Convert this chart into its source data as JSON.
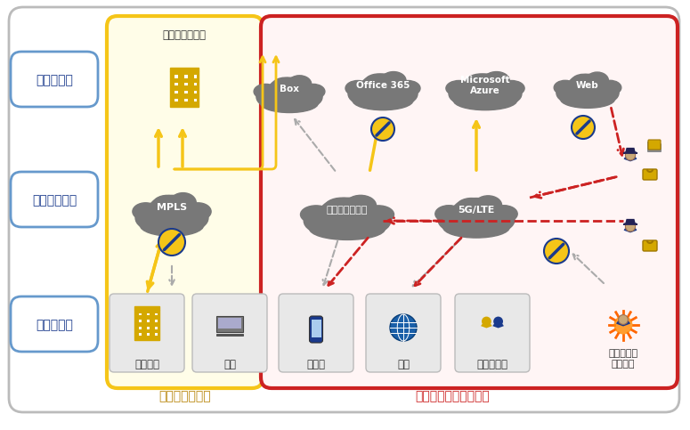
{
  "bg_color": "#ffffff",
  "outer_border_color": "#bbbbbb",
  "yellow_box_color": "#f5c518",
  "red_box_color": "#cc2222",
  "blue_label_color": "#1a3a8c",
  "blue_border_color": "#6699cc",
  "cloud_color": "#787878",
  "cloud_color2": "#898989",
  "bottom_box_color": "#e4e4e4",
  "access_labels": [
    "アクセス先",
    "アクセス経路",
    "アクセス元"
  ],
  "datacenter_label": "データセンター",
  "cloud_labels_top": [
    "Box",
    "Office 365",
    "Microsoft\nAzure",
    "Web"
  ],
  "cloud_labels_mid": [
    "MPLS",
    "インターネット",
    "5G/LTE"
  ],
  "bottom_labels": [
    "オフィス",
    "自宅",
    "外出先",
    "海外",
    "パートナー"
  ],
  "unauthorized_label": "許可しない\nユーザー",
  "yellow_footer": "境界防御の範囲",
  "red_footer": "対策できていない範囲",
  "yellow_color": "#d4a800",
  "red_color": "#cc2222",
  "arrow_yellow": "#f5c518",
  "arrow_gray": "#999999",
  "arrow_red": "#cc2222"
}
